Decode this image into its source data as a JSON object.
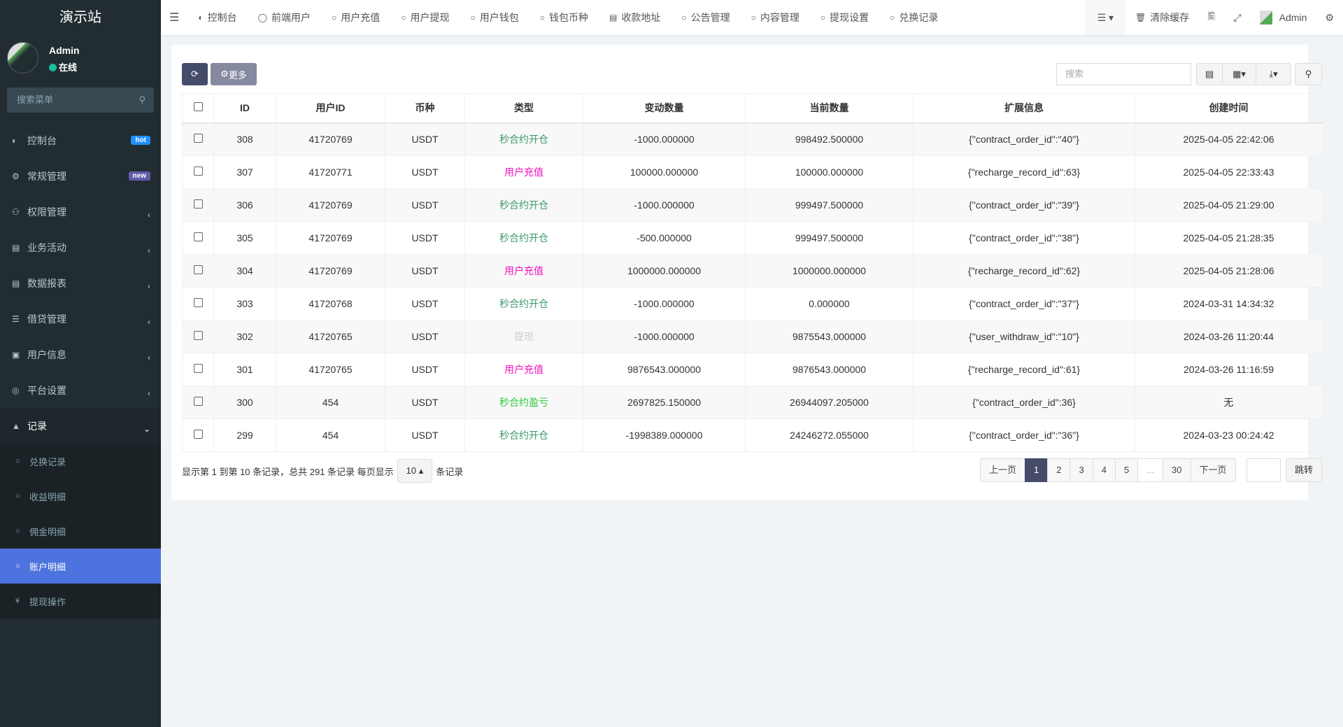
{
  "app": {
    "title": "演示站"
  },
  "user": {
    "name": "Admin",
    "status": "在线"
  },
  "sidebar": {
    "search_placeholder": "搜索菜单",
    "items": [
      {
        "label": "控制台",
        "icon": "dashboard-icon",
        "badge": "hot",
        "badge_color": "#1e90ff"
      },
      {
        "label": "常规管理",
        "icon": "cogs-icon",
        "badge": "new",
        "badge_color": "#605ca8"
      },
      {
        "label": "权限管理",
        "icon": "group-icon"
      },
      {
        "label": "业务活动",
        "icon": "newspaper-icon"
      },
      {
        "label": "数据报表",
        "icon": "file-text-icon"
      },
      {
        "label": "借贷管理",
        "icon": "list-icon"
      },
      {
        "label": "用户信息",
        "icon": "address-card-icon"
      },
      {
        "label": "平台设置",
        "icon": "settings-icon"
      },
      {
        "label": "记录",
        "icon": "area-chart-icon"
      }
    ],
    "subitems": [
      {
        "label": "兑换记录",
        "icon": "circle-icon"
      },
      {
        "label": "收益明细",
        "icon": "circle-icon"
      },
      {
        "label": "佣金明细",
        "icon": "circle-icon"
      },
      {
        "label": "账户明细",
        "icon": "circle-icon",
        "active": true
      },
      {
        "label": "提现操作",
        "icon": "yen-icon"
      }
    ]
  },
  "topnav": {
    "items": [
      {
        "label": "控制台",
        "icon": "dashboard-icon"
      },
      {
        "label": "前端用户",
        "icon": "user-circle-icon"
      },
      {
        "label": "用户充值",
        "icon": "circle-icon"
      },
      {
        "label": "用户提现",
        "icon": "circle-icon"
      },
      {
        "label": "用户钱包",
        "icon": "circle-icon"
      },
      {
        "label": "钱包币种",
        "icon": "circle-icon"
      },
      {
        "label": "收款地址",
        "icon": "card-icon"
      },
      {
        "label": "公告管理",
        "icon": "circle-icon"
      },
      {
        "label": "内容管理",
        "icon": "circle-icon"
      },
      {
        "label": "提现设置",
        "icon": "circle-icon"
      },
      {
        "label": "兑换记录",
        "icon": "circle-icon"
      }
    ],
    "clear_cache": "清除缓存",
    "admin": "Admin"
  },
  "toolbar": {
    "more": "更多",
    "search_placeholder": "搜索"
  },
  "table": {
    "headers": [
      "ID",
      "用户ID",
      "币种",
      "类型",
      "变动数量",
      "当前数量",
      "扩展信息",
      "创建时间"
    ],
    "rows": [
      [
        "308",
        "41720769",
        "USDT",
        "秒合约开仓",
        "-1000.000000",
        "998492.500000",
        "{\"contract_order_id\":\"40\"}",
        "2025-04-05 22:42:06"
      ],
      [
        "307",
        "41720771",
        "USDT",
        "用户充值",
        "100000.000000",
        "100000.000000",
        "{\"recharge_record_id\":63}",
        "2025-04-05 22:33:43"
      ],
      [
        "306",
        "41720769",
        "USDT",
        "秒合约开仓",
        "-1000.000000",
        "999497.500000",
        "{\"contract_order_id\":\"39\"}",
        "2025-04-05 21:29:00"
      ],
      [
        "305",
        "41720769",
        "USDT",
        "秒合约开仓",
        "-500.000000",
        "999497.500000",
        "{\"contract_order_id\":\"38\"}",
        "2025-04-05 21:28:35"
      ],
      [
        "304",
        "41720769",
        "USDT",
        "用户充值",
        "1000000.000000",
        "1000000.000000",
        "{\"recharge_record_id\":62}",
        "2025-04-05 21:28:06"
      ],
      [
        "303",
        "41720768",
        "USDT",
        "秒合约开仓",
        "-1000.000000",
        "0.000000",
        "{\"contract_order_id\":\"37\"}",
        "2024-03-31 14:34:32"
      ],
      [
        "302",
        "41720765",
        "USDT",
        "提现",
        "-1000.000000",
        "9875543.000000",
        "{\"user_withdraw_id\":\"10\"}",
        "2024-03-26 11:20:44"
      ],
      [
        "301",
        "41720765",
        "USDT",
        "用户充值",
        "9876543.000000",
        "9876543.000000",
        "{\"recharge_record_id\":61}",
        "2024-03-26 11:16:59"
      ],
      [
        "300",
        "454",
        "USDT",
        "秒合约盈亏",
        "2697825.150000",
        "26944097.205000",
        "{\"contract_order_id\":36}",
        "无"
      ],
      [
        "299",
        "454",
        "USDT",
        "秒合约开仓",
        "-1998389.000000",
        "24246272.055000",
        "{\"contract_order_id\":\"36\"}",
        "2024-03-23 00:24:42"
      ]
    ],
    "type_colors": {
      "秒合约开仓": "#3c9a6e",
      "用户充值": "#f012be",
      "提现": "#cccccc",
      "秒合约盈亏": "#2ecc40"
    }
  },
  "footer": {
    "summary": "显示第 1 到第 10 条记录，总共 291 条记录 每页显示",
    "page_size": "10",
    "suffix": "条记录"
  },
  "pagination": {
    "prev": "上一页",
    "pages": [
      "1",
      "2",
      "3",
      "4",
      "5",
      "...",
      "30"
    ],
    "current": "1",
    "next": "下一页",
    "jump": "跳转"
  }
}
